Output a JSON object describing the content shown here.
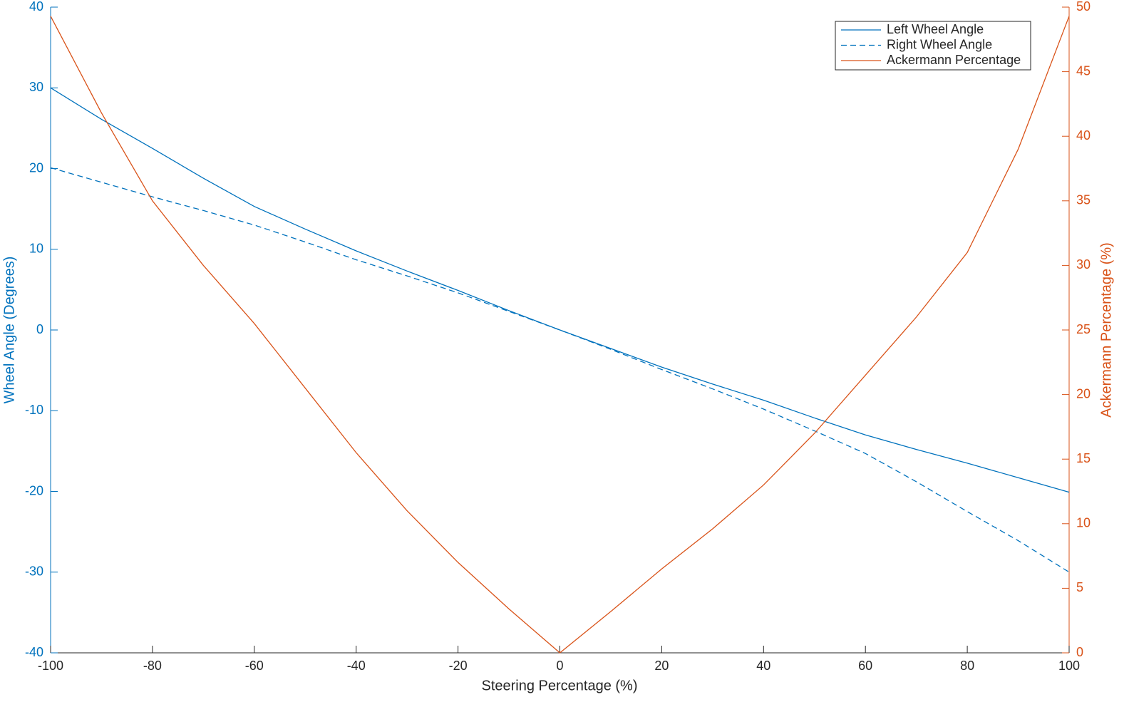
{
  "chart_data": {
    "type": "line",
    "x_label": "Steering Percentage (%)",
    "y_label": "Wheel Angle (Degrees)",
    "y2_label": "Ackermann Percentage (%)",
    "x": [
      -100,
      -90,
      -80,
      -70,
      -60,
      -50,
      -40,
      -30,
      -20,
      -10,
      0,
      10,
      20,
      30,
      40,
      50,
      60,
      70,
      80,
      90,
      100
    ],
    "series": [
      {
        "name": "Left Wheel Angle",
        "color": "#0072BD",
        "dash": false,
        "values": [
          30,
          26.1,
          22.5,
          18.8,
          15.3,
          12.5,
          9.8,
          7.3,
          4.9,
          2.4,
          0,
          -2.3,
          -4.6,
          -6.7,
          -8.7,
          -10.9,
          -13,
          -14.8,
          -16.5,
          -18.3,
          -20.1
        ]
      },
      {
        "name": "Right Wheel Angle",
        "color": "#0072BD",
        "dash": true,
        "values": [
          20.1,
          18.3,
          16.5,
          14.8,
          13,
          10.9,
          8.7,
          6.7,
          4.6,
          2.3,
          0,
          -2.4,
          -4.9,
          -7.3,
          -9.8,
          -12.5,
          -15.3,
          -18.8,
          -22.5,
          -26.1,
          -30
        ]
      },
      {
        "name": "Ackermann Percentage",
        "color": "#D95319",
        "dash": false,
        "axis": "y2",
        "values": [
          49.3,
          41.8,
          35,
          30,
          25.5,
          20.5,
          15.5,
          11,
          7,
          3.4,
          0,
          3.2,
          6.5,
          9.6,
          13,
          17,
          21.5,
          26,
          31,
          39,
          49.3
        ]
      }
    ],
    "xlim": [
      -100,
      100
    ],
    "xticks": [
      -100,
      -80,
      -60,
      -40,
      -20,
      0,
      20,
      40,
      60,
      80,
      100
    ],
    "ylim": [
      -40,
      40
    ],
    "yticks": [
      -40,
      -30,
      -20,
      -10,
      0,
      10,
      20,
      30,
      40
    ],
    "y2lim": [
      0,
      50
    ],
    "y2ticks": [
      0,
      5,
      10,
      15,
      20,
      25,
      30,
      35,
      40,
      45,
      50
    ],
    "legend": "top-right",
    "grid": false
  }
}
